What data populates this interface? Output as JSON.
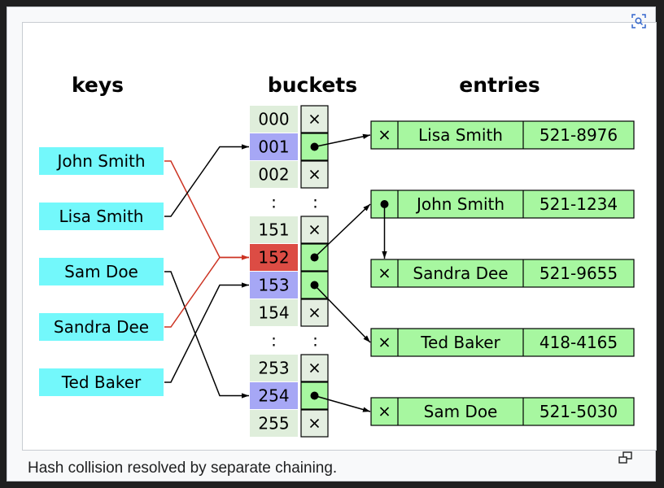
{
  "headers": {
    "keys": "keys",
    "buckets": "buckets",
    "entries": "entries"
  },
  "keys": [
    "John Smith",
    "Lisa Smith",
    "Sam Doe",
    "Sandra Dee",
    "Ted Baker"
  ],
  "buckets": [
    {
      "label": "000",
      "highlight": "none",
      "ptr": "null"
    },
    {
      "label": "001",
      "highlight": "single",
      "ptr": "ptr"
    },
    {
      "label": "002",
      "highlight": "none",
      "ptr": "null"
    },
    {
      "label": ":",
      "highlight": "none",
      "ptr": "dots"
    },
    {
      "label": "151",
      "highlight": "none",
      "ptr": "null"
    },
    {
      "label": "152",
      "highlight": "collision",
      "ptr": "ptr"
    },
    {
      "label": "153",
      "highlight": "single",
      "ptr": "ptr"
    },
    {
      "label": "154",
      "highlight": "none",
      "ptr": "null"
    },
    {
      "label": ":",
      "highlight": "none",
      "ptr": "dots"
    },
    {
      "label": "253",
      "highlight": "none",
      "ptr": "null"
    },
    {
      "label": "254",
      "highlight": "single",
      "ptr": "ptr"
    },
    {
      "label": "255",
      "highlight": "none",
      "ptr": "null"
    }
  ],
  "entries": [
    {
      "name": "Lisa Smith",
      "phone": "521-8976",
      "next": "null"
    },
    {
      "name": "John Smith",
      "phone": "521-1234",
      "next": "ptr"
    },
    {
      "name": "Sandra Dee",
      "phone": "521-9655",
      "next": "null"
    },
    {
      "name": "Ted Baker",
      "phone": "418-4165",
      "next": "null"
    },
    {
      "name": "Sam Doe",
      "phone": "521-5030",
      "next": "null"
    }
  ],
  "key_links": [
    {
      "key": 0,
      "bucket": 5,
      "collision": true
    },
    {
      "key": 1,
      "bucket": 1,
      "collision": false
    },
    {
      "key": 2,
      "bucket": 10,
      "collision": false
    },
    {
      "key": 3,
      "bucket": 5,
      "collision": true
    },
    {
      "key": 4,
      "bucket": 6,
      "collision": false
    }
  ],
  "bucket_links": [
    {
      "bucket": 1,
      "entry": 0
    },
    {
      "bucket": 5,
      "entry": 1
    },
    {
      "bucket": 6,
      "entry": 3
    },
    {
      "bucket": 10,
      "entry": 4
    }
  ],
  "chain_links": [
    {
      "from": 1,
      "to": 2
    }
  ],
  "caption": "Hash collision resolved by separate chaining.",
  "glyphs": {
    "null_mark": "×"
  },
  "colors": {
    "key_fill": "#73f8fb",
    "bucket_plain": "#dfeedb",
    "bucket_single": "#a6a7f5",
    "bucket_collision": "#dc4c44",
    "pointer_cell": "#a7f7a0",
    "null_cell": "#e4eee1",
    "entry_fill": "#a7f7a0",
    "collision_line": "#cc3322",
    "line": "#000000"
  },
  "icons": {
    "top_right": "image-search-icon",
    "bottom_right": "enlarge-icon"
  }
}
